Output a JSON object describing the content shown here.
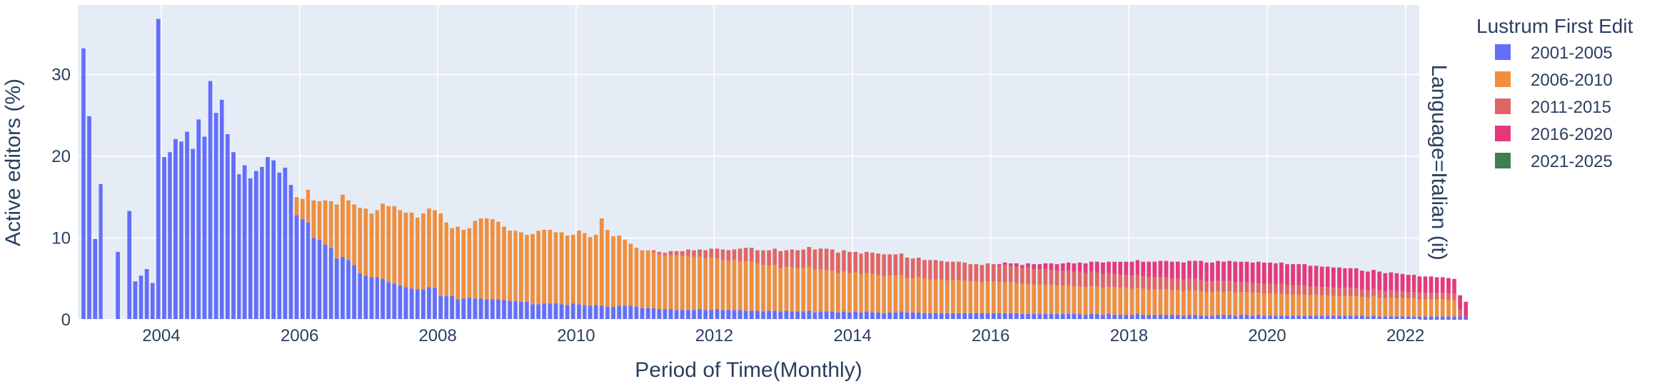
{
  "chart_data": {
    "type": "bar",
    "barmode": "stack",
    "xlabel": "Period of Time(Monthly)",
    "ylabel": "Active editors (%)",
    "facet_label": "Language=Italian (it)",
    "x_start": "2002-11",
    "x_range": [
      "2002-10-17",
      "2022-03-15"
    ],
    "ylim": [
      0,
      38.5
    ],
    "y_ticks": [
      0,
      10,
      20,
      30
    ],
    "x_ticks": [
      {
        "label": "2004",
        "date": "2004-01-01"
      },
      {
        "label": "2006",
        "date": "2006-01-01"
      },
      {
        "label": "2008",
        "date": "2008-01-01"
      },
      {
        "label": "2010",
        "date": "2010-01-01"
      },
      {
        "label": "2012",
        "date": "2012-01-01"
      },
      {
        "label": "2014",
        "date": "2014-01-01"
      },
      {
        "label": "2016",
        "date": "2016-01-01"
      },
      {
        "label": "2018",
        "date": "2018-01-01"
      },
      {
        "label": "2020",
        "date": "2020-01-01"
      },
      {
        "label": "2022",
        "date": "2022-01-01"
      }
    ],
    "legend": {
      "title": "Lustrum First Edit",
      "placement": "right"
    },
    "grid": true,
    "plot_bg": "#e5ecf6",
    "series": [
      {
        "name": "2001-2005",
        "color": "#636efa",
        "values": [
          33.2,
          24.9,
          9.9,
          16.6,
          0,
          0,
          8.3,
          0,
          13.3,
          4.7,
          5.4,
          6.2,
          4.5,
          36.8,
          19.9,
          20.5,
          22.1,
          21.8,
          23.0,
          20.9,
          24.5,
          22.4,
          29.2,
          25.3,
          26.9,
          22.7,
          20.5,
          17.8,
          18.9,
          17.3,
          18.2,
          18.7,
          19.9,
          19.5,
          18.0,
          18.6,
          16.5,
          12.8,
          12.3,
          11.9,
          10.0,
          9.8,
          9.2,
          8.8,
          7.5,
          7.7,
          7.3,
          6.7,
          5.7,
          5.4,
          5.2,
          5.2,
          5.0,
          4.6,
          4.4,
          4.2,
          4.0,
          3.8,
          3.7,
          3.7,
          4.0,
          3.9,
          2.9,
          2.9,
          2.9,
          2.5,
          2.6,
          2.7,
          2.6,
          2.6,
          2.5,
          2.5,
          2.5,
          2.4,
          2.3,
          2.3,
          2.2,
          2.2,
          1.9,
          1.9,
          2.0,
          2.0,
          2.0,
          1.9,
          1.8,
          2.0,
          1.9,
          1.8,
          1.7,
          1.8,
          1.7,
          1.6,
          1.6,
          1.7,
          1.7,
          1.7,
          1.6,
          1.4,
          1.4,
          1.4,
          1.3,
          1.3,
          1.3,
          1.2,
          1.2,
          1.2,
          1.2,
          1.3,
          1.2,
          1.2,
          1.3,
          1.2,
          1.2,
          1.2,
          1.2,
          1.1,
          1.1,
          1.1,
          1.0,
          1.1,
          1.1,
          1.0,
          1.1,
          1.0,
          1.0,
          1.0,
          1.1,
          0.9,
          1.0,
          1.0,
          1.0,
          0.9,
          1.0,
          0.9,
          1.0,
          0.9,
          1.0,
          0.9,
          0.9,
          0.8,
          0.9,
          0.9,
          1.0,
          0.9,
          0.9,
          0.9,
          0.8,
          0.8,
          0.8,
          0.8,
          0.8,
          0.8,
          0.8,
          0.8,
          0.8,
          0.8,
          0.8,
          0.8,
          0.8,
          0.8,
          0.8,
          0.8,
          0.8,
          0.7,
          0.7,
          0.7,
          0.7,
          0.7,
          0.7,
          0.7,
          0.7,
          0.7,
          0.7,
          0.7,
          0.6,
          0.7,
          0.7,
          0.6,
          0.7,
          0.6,
          0.6,
          0.6,
          0.6,
          0.7,
          0.6,
          0.6,
          0.6,
          0.6,
          0.6,
          0.6,
          0.6,
          0.5,
          0.6,
          0.6,
          0.5,
          0.5,
          0.5,
          0.6,
          0.6,
          0.6,
          0.5,
          0.6,
          0.6,
          0.5,
          0.6,
          0.5,
          0.5,
          0.5,
          0.5,
          0.5,
          0.5,
          0.5,
          0.5,
          0.5,
          0.5,
          0.5,
          0.5,
          0.5,
          0.5,
          0.5,
          0.5,
          0.5,
          0.5,
          0.4,
          0.5,
          0.4,
          0.4,
          0.4,
          0.4,
          0.4,
          0.4,
          0.4,
          0.4,
          0.4,
          0.4,
          0.4,
          0.4,
          0.4,
          0.4,
          0.4,
          0.4
        ]
      },
      {
        "name": "2006-2010",
        "color": "#ef8f3e",
        "values": [
          0,
          0,
          0,
          0,
          0,
          0,
          0,
          0,
          0,
          0,
          0,
          0,
          0,
          0,
          0,
          0,
          0,
          0,
          0,
          0,
          0,
          0,
          0,
          0,
          0,
          0,
          0,
          0,
          0,
          0,
          0,
          0,
          0,
          0,
          0,
          0,
          0,
          2.2,
          2.5,
          4.0,
          4.6,
          4.7,
          5.4,
          5.7,
          6.6,
          7.6,
          7.3,
          7.4,
          8.0,
          8.2,
          7.8,
          8.2,
          9.2,
          9.3,
          9.5,
          9.2,
          9.1,
          9.3,
          8.8,
          9.3,
          9.6,
          9.5,
          10.1,
          9.0,
          8.3,
          8.9,
          8.4,
          8.5,
          9.5,
          9.8,
          9.9,
          9.8,
          9.5,
          9.0,
          8.6,
          8.6,
          8.5,
          8.2,
          8.6,
          9.0,
          9.0,
          9.0,
          8.7,
          8.8,
          8.5,
          8.4,
          9.0,
          8.8,
          8.4,
          8.6,
          10.7,
          9.4,
          8.6,
          8.6,
          8.1,
          7.6,
          7.2,
          7.1,
          7.1,
          6.8,
          6.7,
          6.6,
          6.6,
          6.7,
          6.6,
          6.6,
          6.5,
          6.4,
          6.3,
          6.4,
          6.2,
          6.1,
          6.0,
          6.1,
          6.0,
          6.1,
          6.0,
          5.8,
          5.7,
          5.5,
          5.6,
          5.3,
          5.4,
          5.4,
          5.3,
          5.3,
          5.4,
          5.2,
          5.2,
          5.1,
          5.0,
          4.8,
          4.9,
          4.8,
          4.8,
          4.7,
          4.7,
          4.7,
          4.6,
          4.5,
          4.5,
          4.5,
          4.5,
          4.2,
          4.2,
          4.3,
          4.2,
          4.1,
          4.1,
          4.1,
          4.0,
          4.1,
          4.0,
          4.0,
          3.9,
          3.9,
          3.8,
          3.9,
          3.9,
          3.8,
          3.8,
          3.8,
          3.7,
          3.7,
          3.7,
          3.6,
          3.6,
          3.6,
          3.6,
          3.5,
          3.5,
          3.5,
          3.4,
          3.4,
          3.4,
          3.4,
          3.4,
          3.3,
          3.3,
          3.4,
          3.3,
          3.3,
          3.2,
          3.2,
          3.2,
          3.1,
          3.1,
          3.1,
          3.1,
          3.0,
          3.0,
          3.0,
          3.0,
          3.0,
          3.0,
          2.9,
          2.9,
          2.9,
          2.8,
          2.9,
          2.8,
          2.8,
          2.8,
          2.8,
          2.7,
          2.7,
          2.7,
          2.7,
          2.7,
          2.6,
          2.6,
          2.6,
          2.6,
          2.5,
          2.6,
          2.5,
          2.5,
          2.4,
          2.4,
          2.4,
          2.4,
          2.4,
          2.3,
          2.3,
          2.4,
          2.3,
          2.2,
          2.3,
          2.2,
          2.2,
          2.2,
          2.2,
          2.1,
          2.1,
          2.1,
          2.1,
          2.1,
          2.0,
          2.0
        ]
      },
      {
        "name": "2011-2015",
        "color": "#e06666",
        "values": [
          0,
          0,
          0,
          0,
          0,
          0,
          0,
          0,
          0,
          0,
          0,
          0,
          0,
          0,
          0,
          0,
          0,
          0,
          0,
          0,
          0,
          0,
          0,
          0,
          0,
          0,
          0,
          0,
          0,
          0,
          0,
          0,
          0,
          0,
          0,
          0,
          0,
          0,
          0,
          0,
          0,
          0,
          0,
          0,
          0,
          0,
          0,
          0,
          0,
          0,
          0,
          0,
          0,
          0,
          0,
          0,
          0,
          0,
          0,
          0,
          0,
          0,
          0,
          0,
          0,
          0,
          0,
          0,
          0,
          0,
          0,
          0,
          0,
          0,
          0,
          0,
          0,
          0,
          0,
          0,
          0,
          0,
          0,
          0,
          0,
          0,
          0,
          0,
          0,
          0,
          0,
          0,
          0,
          0,
          0,
          0,
          0,
          0,
          0,
          0.3,
          0.3,
          0.3,
          0.5,
          0.5,
          0.6,
          0.8,
          0.8,
          0.9,
          1.0,
          1.1,
          1.2,
          1.3,
          1.3,
          1.3,
          1.5,
          1.6,
          1.7,
          1.6,
          1.8,
          1.9,
          2.0,
          2.1,
          2.0,
          2.2,
          2.2,
          2.3,
          2.4,
          2.5,
          2.5,
          2.6,
          2.6,
          2.5,
          2.6,
          2.6,
          2.5,
          2.5,
          2.6,
          2.6,
          2.6,
          2.7,
          2.6,
          2.6,
          2.6,
          2.5,
          2.4,
          2.4,
          2.3,
          2.4,
          2.4,
          2.3,
          2.3,
          2.2,
          2.3,
          2.2,
          2.1,
          2.1,
          2.1,
          2.2,
          2.1,
          2.0,
          2.1,
          2.0,
          2.0,
          1.9,
          2.0,
          1.9,
          1.9,
          1.9,
          1.8,
          1.8,
          1.8,
          1.8,
          1.8,
          1.8,
          1.7,
          1.8,
          1.7,
          1.7,
          1.7,
          1.6,
          1.6,
          1.6,
          1.6,
          1.6,
          1.5,
          1.5,
          1.5,
          1.5,
          1.5,
          1.4,
          1.4,
          1.4,
          1.4,
          1.4,
          1.4,
          1.3,
          1.3,
          1.3,
          1.3,
          1.3,
          1.3,
          1.2,
          1.2,
          1.2,
          1.2,
          1.2,
          1.2,
          1.1,
          1.2,
          1.1,
          1.1,
          1.1,
          1.1,
          1.1,
          1.0,
          1.0,
          1.0,
          1.0,
          1.0,
          1.0,
          1.0,
          1.0,
          0.9,
          0.9,
          0.9,
          0.9,
          0.9,
          0.9,
          0.9,
          0.9,
          0.8,
          0.8,
          0.8,
          0.8,
          0.8,
          0.8,
          0.8,
          0.8,
          0.8,
          0.8
        ]
      },
      {
        "name": "2016-2020",
        "color": "#e5397a",
        "values": [
          0,
          0,
          0,
          0,
          0,
          0,
          0,
          0,
          0,
          0,
          0,
          0,
          0,
          0,
          0,
          0,
          0,
          0,
          0,
          0,
          0,
          0,
          0,
          0,
          0,
          0,
          0,
          0,
          0,
          0,
          0,
          0,
          0,
          0,
          0,
          0,
          0,
          0,
          0,
          0,
          0,
          0,
          0,
          0,
          0,
          0,
          0,
          0,
          0,
          0,
          0,
          0,
          0,
          0,
          0,
          0,
          0,
          0,
          0,
          0,
          0,
          0,
          0,
          0,
          0,
          0,
          0,
          0,
          0,
          0,
          0,
          0,
          0,
          0,
          0,
          0,
          0,
          0,
          0,
          0,
          0,
          0,
          0,
          0,
          0,
          0,
          0,
          0,
          0,
          0,
          0,
          0,
          0,
          0,
          0,
          0,
          0,
          0,
          0,
          0,
          0,
          0,
          0,
          0,
          0,
          0,
          0,
          0,
          0,
          0,
          0,
          0,
          0,
          0,
          0,
          0,
          0,
          0,
          0,
          0,
          0,
          0,
          0,
          0,
          0,
          0,
          0,
          0,
          0,
          0,
          0,
          0,
          0,
          0,
          0,
          0,
          0,
          0,
          0,
          0,
          0,
          0,
          0,
          0,
          0,
          0,
          0,
          0,
          0,
          0,
          0,
          0,
          0,
          0,
          0,
          0,
          0,
          0,
          0,
          0.2,
          0.3,
          0.3,
          0.4,
          0.4,
          0.5,
          0.6,
          0.6,
          0.7,
          0.8,
          0.8,
          0.9,
          1.0,
          1.0,
          1.1,
          1.2,
          1.2,
          1.3,
          1.4,
          1.4,
          1.5,
          1.6,
          1.6,
          1.7,
          1.8,
          1.8,
          1.9,
          1.9,
          2.0,
          2.0,
          2.1,
          2.1,
          2.1,
          2.2,
          2.2,
          2.3,
          2.3,
          2.3,
          2.4,
          2.4,
          2.4,
          2.5,
          2.5,
          2.5,
          2.5,
          2.6,
          2.6,
          2.6,
          2.6,
          2.6,
          2.6,
          2.6,
          2.6,
          2.6,
          2.5,
          2.5,
          2.5,
          2.5,
          2.5,
          2.5,
          2.4,
          2.4,
          2.4,
          2.3,
          2.3,
          2.3,
          2.3,
          2.2,
          2.2,
          2.2,
          2.1,
          2.1,
          2.1,
          2.0,
          2.0,
          2.0,
          1.9,
          1.9,
          1.9,
          1.8,
          1.8,
          1.8,
          1.7,
          1.7,
          1.7,
          1.7,
          1.6,
          1.6,
          1.6
        ]
      },
      {
        "name": "2021-2025",
        "color": "#3d7f52",
        "values": [
          0,
          0,
          0,
          0,
          0,
          0,
          0,
          0,
          0,
          0,
          0,
          0,
          0,
          0,
          0,
          0,
          0,
          0,
          0,
          0,
          0,
          0,
          0,
          0,
          0,
          0,
          0,
          0,
          0,
          0,
          0,
          0,
          0,
          0,
          0,
          0,
          0,
          0,
          0,
          0,
          0,
          0,
          0,
          0,
          0,
          0,
          0,
          0,
          0,
          0,
          0,
          0,
          0,
          0,
          0,
          0,
          0,
          0,
          0,
          0,
          0,
          0,
          0,
          0,
          0,
          0,
          0,
          0,
          0,
          0,
          0,
          0,
          0,
          0,
          0,
          0,
          0,
          0,
          0,
          0,
          0,
          0,
          0,
          0,
          0,
          0,
          0,
          0,
          0,
          0,
          0,
          0,
          0,
          0,
          0,
          0,
          0,
          0,
          0,
          0,
          0,
          0,
          0,
          0,
          0,
          0,
          0,
          0,
          0,
          0,
          0,
          0,
          0,
          0,
          0,
          0,
          0,
          0,
          0,
          0,
          0,
          0,
          0,
          0,
          0,
          0,
          0,
          0,
          0,
          0,
          0,
          0,
          0,
          0,
          0,
          0,
          0,
          0,
          0,
          0,
          0,
          0,
          0,
          0,
          0,
          0,
          0,
          0,
          0,
          0,
          0,
          0,
          0,
          0,
          0,
          0,
          0,
          0,
          0,
          0,
          0,
          0,
          0,
          0,
          0,
          0,
          0,
          0,
          0,
          0,
          0,
          0,
          0,
          0,
          0,
          0,
          0,
          0,
          0,
          0,
          0,
          0,
          0,
          0,
          0,
          0,
          0,
          0,
          0,
          0,
          0,
          0,
          0,
          0,
          0,
          0,
          0,
          0,
          0,
          0,
          0,
          0,
          0,
          0,
          0,
          0,
          0,
          0,
          0,
          0,
          0,
          0,
          0,
          0,
          0,
          0,
          0,
          0,
          0,
          0,
          0,
          0,
          0,
          0,
          0,
          0,
          0,
          0,
          0,
          0,
          0,
          0,
          0,
          0,
          0,
          0,
          0,
          0,
          0,
          0,
          0,
          0.2,
          0.3,
          0.2,
          0.4,
          0.5,
          0.4,
          0.6,
          0.3,
          0.5,
          0.4,
          0.6,
          0.5,
          0.6,
          0.5,
          0.4,
          0.5
        ]
      }
    ]
  }
}
